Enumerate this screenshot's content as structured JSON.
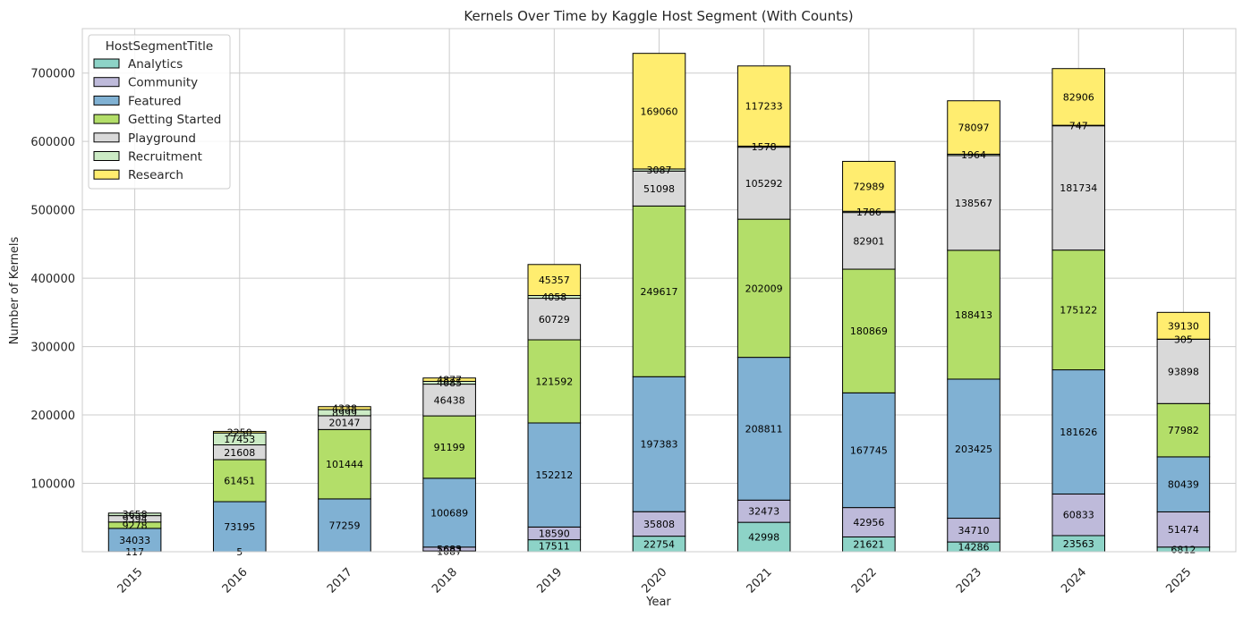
{
  "chart_data": {
    "type": "bar",
    "stacked": true,
    "title": "Kernels Over Time by Kaggle Host Segment (With Counts)",
    "xlabel": "Year",
    "ylabel": "Number of Kernels",
    "ylim": [
      0,
      765000
    ],
    "yticks": [
      100000,
      200000,
      300000,
      400000,
      500000,
      600000,
      700000
    ],
    "grid": true,
    "legend_title": "HostSegmentTitle",
    "legend_position": "top-left",
    "categories": [
      "2015",
      "2016",
      "2017",
      "2018",
      "2019",
      "2020",
      "2021",
      "2022",
      "2023",
      "2024",
      "2025"
    ],
    "series": [
      {
        "name": "Analytics",
        "color": "#8dd3c7",
        "values": [
          117,
          0,
          0,
          1087,
          17511,
          22754,
          42998,
          21621,
          14286,
          23563,
          6812
        ]
      },
      {
        "name": "Community",
        "color": "#bebada",
        "values": [
          0,
          5,
          0,
          5683,
          18590,
          35808,
          32473,
          42956,
          34710,
          60833,
          51474
        ]
      },
      {
        "name": "Featured",
        "color": "#80b1d3",
        "values": [
          34033,
          73195,
          77259,
          100689,
          152212,
          197383,
          208811,
          167745,
          203425,
          181626,
          80439
        ]
      },
      {
        "name": "Getting Started",
        "color": "#b3de69",
        "values": [
          9278,
          61451,
          101444,
          91199,
          121592,
          249617,
          202009,
          180869,
          188413,
          175122,
          77982
        ]
      },
      {
        "name": "Playground",
        "color": "#d9d9d9",
        "values": [
          9394,
          21608,
          20147,
          46438,
          60729,
          51098,
          105292,
          82901,
          138567,
          181734,
          93898
        ]
      },
      {
        "name": "Recruitment",
        "color": "#ccebc5",
        "values": [
          3658,
          17453,
          8999,
          4085,
          4058,
          3087,
          1578,
          1786,
          1964,
          747,
          305
        ]
      },
      {
        "name": "Research",
        "color": "#ffed6f",
        "values": [
          0,
          2250,
          4338,
          4877,
          45357,
          169060,
          117233,
          72989,
          78097,
          82906,
          39130
        ]
      }
    ]
  }
}
